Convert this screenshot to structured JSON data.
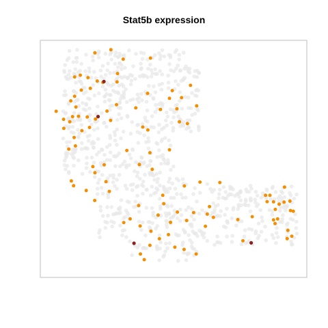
{
  "chart_data": {
    "type": "scatter",
    "title": "Stat5b expression",
    "xlabel": "",
    "ylabel": "",
    "grid": false,
    "legend": "none",
    "axes_shown": false,
    "colors": {
      "background_cells": "#e8e8e8",
      "expressing": "#f28e00",
      "high_expressing": "#8b2323",
      "frame": "#bebebe"
    },
    "xlim": [
      0,
      1
    ],
    "ylim": [
      0,
      1
    ],
    "series": [
      {
        "key": "expressing",
        "color": "#f28e00",
        "points": [
          [
            0.194,
            0.966
          ],
          [
            0.256,
            0.98
          ],
          [
            0.304,
            0.938
          ],
          [
            0.41,
            0.943
          ],
          [
            0.115,
            0.86
          ],
          [
            0.137,
            0.868
          ],
          [
            0.167,
            0.857
          ],
          [
            0.203,
            0.842
          ],
          [
            0.176,
            0.81
          ],
          [
            0.225,
            0.836
          ],
          [
            0.141,
            0.802
          ],
          [
            0.115,
            0.775
          ],
          [
            0.1,
            0.755
          ],
          [
            0.12,
            0.728
          ],
          [
            0.043,
            0.709
          ],
          [
            0.072,
            0.674
          ],
          [
            0.107,
            0.686
          ],
          [
            0.096,
            0.663
          ],
          [
            0.13,
            0.687
          ],
          [
            0.164,
            0.684
          ],
          [
            0.196,
            0.675
          ],
          [
            0.073,
            0.634
          ],
          [
            0.113,
            0.594
          ],
          [
            0.118,
            0.557
          ],
          [
            0.092,
            0.543
          ],
          [
            0.143,
            0.624
          ],
          [
            0.173,
            0.638
          ],
          [
            0.241,
            0.71
          ],
          [
            0.255,
            0.669
          ],
          [
            0.282,
            0.875
          ],
          [
            0.28,
            0.838
          ],
          [
            0.278,
            0.738
          ],
          [
            0.399,
            0.788
          ],
          [
            0.484,
            0.766
          ],
          [
            0.495,
            0.8
          ],
          [
            0.531,
            0.769
          ],
          [
            0.513,
            0.72
          ],
          [
            0.449,
            0.717
          ],
          [
            0.566,
            0.823
          ],
          [
            0.523,
            0.663
          ],
          [
            0.554,
            0.655
          ],
          [
            0.59,
            0.733
          ],
          [
            0.353,
            0.724
          ],
          [
            0.38,
            0.64
          ],
          [
            0.318,
            0.537
          ],
          [
            0.4,
            0.627
          ],
          [
            0.367,
            0.475
          ],
          [
            0.417,
            0.454
          ],
          [
            0.23,
            0.474
          ],
          [
            0.194,
            0.439
          ],
          [
            0.186,
            0.466
          ],
          [
            0.102,
            0.403
          ],
          [
            0.111,
            0.382
          ],
          [
            0.16,
            0.361
          ],
          [
            0.193,
            0.317
          ],
          [
            0.331,
            0.236
          ],
          [
            0.25,
            0.357
          ],
          [
            0.237,
            0.4
          ],
          [
            0.408,
            0.527
          ],
          [
            0.484,
            0.54
          ],
          [
            0.364,
            0.295
          ],
          [
            0.306,
            0.22
          ],
          [
            0.458,
            0.34
          ],
          [
            0.37,
            0.205
          ],
          [
            0.462,
            0.303
          ],
          [
            0.542,
            0.381
          ],
          [
            0.515,
            0.266
          ],
          [
            0.44,
            0.253
          ],
          [
            0.412,
            0.182
          ],
          [
            0.488,
            0.221
          ],
          [
            0.445,
            0.149
          ],
          [
            0.408,
            0.12
          ],
          [
            0.371,
            0.082
          ],
          [
            0.386,
            0.057
          ],
          [
            0.48,
            0.167
          ],
          [
            0.505,
            0.112
          ],
          [
            0.541,
            0.102
          ],
          [
            0.588,
            0.082
          ],
          [
            0.631,
            0.257
          ],
          [
            0.578,
            0.264
          ],
          [
            0.551,
            0.229
          ],
          [
            0.64,
            0.29
          ],
          [
            0.655,
            0.243
          ],
          [
            0.624,
            0.204
          ],
          [
            0.75,
            0.233
          ],
          [
            0.77,
            0.14
          ],
          [
            0.806,
            0.246
          ],
          [
            0.858,
            0.34
          ],
          [
            0.932,
            0.376
          ],
          [
            0.875,
            0.34
          ],
          [
            0.864,
            0.312
          ],
          [
            0.889,
            0.311
          ],
          [
            0.911,
            0.301
          ],
          [
            0.93,
            0.31
          ],
          [
            0.953,
            0.314
          ],
          [
            0.896,
            0.278
          ],
          [
            0.955,
            0.273
          ],
          [
            0.966,
            0.27
          ],
          [
            0.905,
            0.236
          ],
          [
            0.889,
            0.232
          ],
          [
            0.895,
            0.216
          ],
          [
            0.945,
            0.186
          ],
          [
            0.96,
            0.16
          ],
          [
            0.942,
            0.15
          ],
          [
            0.603,
            0.398
          ],
          [
            0.68,
            0.396
          ]
        ]
      },
      {
        "key": "high_expressing",
        "color": "#8b2323",
        "points": [
          [
            0.229,
            0.84
          ],
          [
            0.206,
            0.686
          ],
          [
            0.346,
            0.129
          ],
          [
            0.802,
            0.131
          ]
        ]
      }
    ]
  }
}
